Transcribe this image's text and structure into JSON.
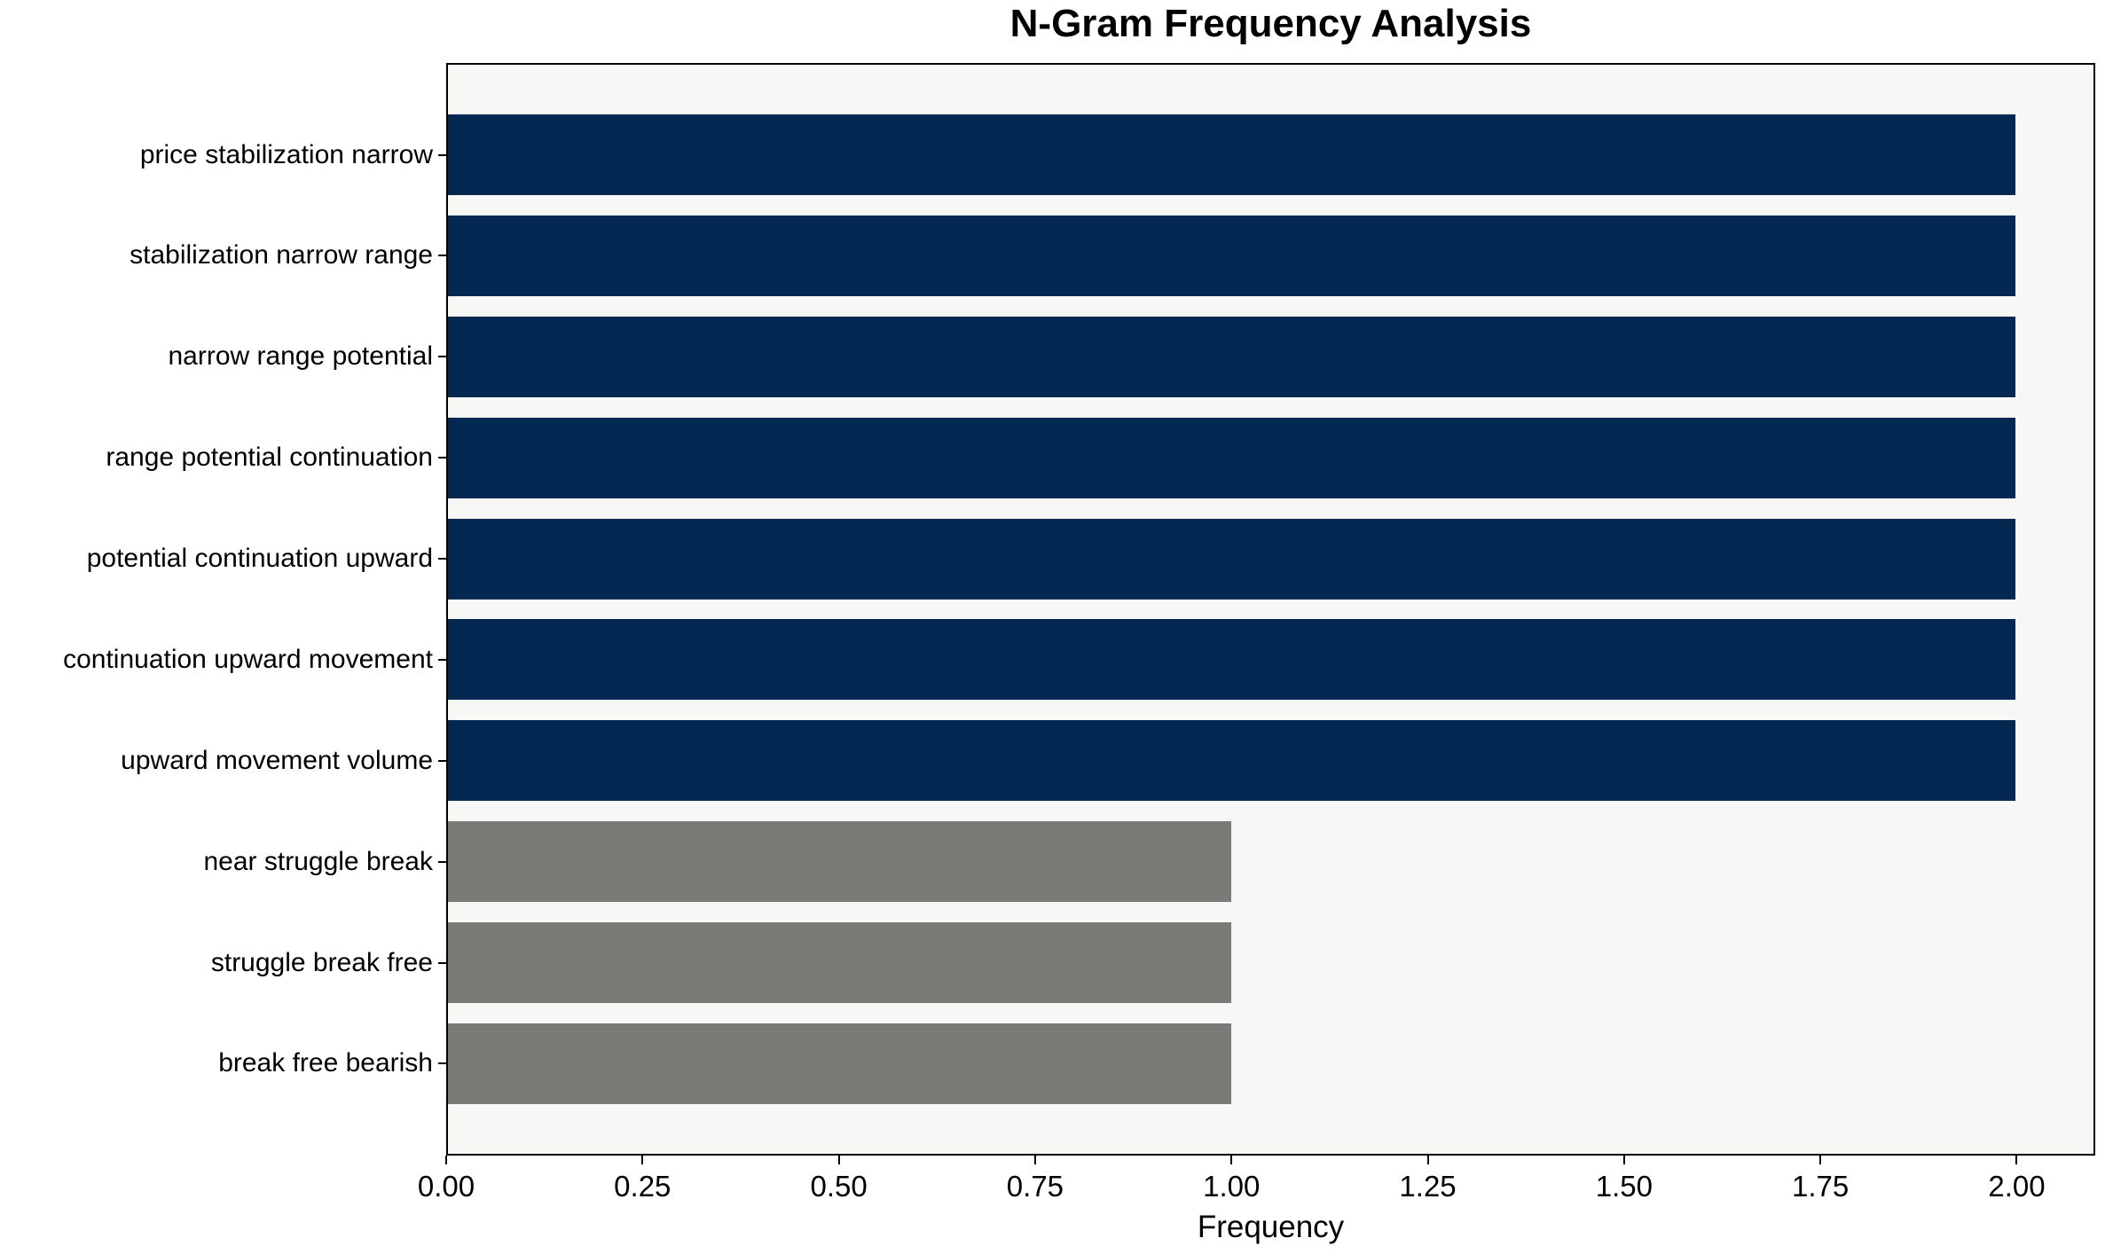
{
  "figure": {
    "background": "#ffffff",
    "plot_background": "#f7f7f6",
    "axis_color": "#000000"
  },
  "chart_data": {
    "type": "bar",
    "orientation": "horizontal",
    "title": "N-Gram Frequency Analysis",
    "xlabel": "Frequency",
    "ylabel": "",
    "grid": false,
    "legend": null,
    "xlim": [
      0,
      2.1
    ],
    "bar_height_fraction": 0.8,
    "categories": [
      "price stabilization narrow",
      "stabilization narrow range",
      "narrow range potential",
      "range potential continuation",
      "potential continuation upward",
      "continuation upward movement",
      "upward movement volume",
      "near struggle break",
      "struggle break free",
      "break free bearish"
    ],
    "values": [
      2,
      2,
      2,
      2,
      2,
      2,
      2,
      1,
      1,
      1
    ],
    "bar_colors": [
      "#032952",
      "#032952",
      "#032952",
      "#032952",
      "#032952",
      "#032952",
      "#032952",
      "#7a7a77",
      "#7a7a77",
      "#7a7a77"
    ],
    "colors": {
      "frequent": "#032952",
      "infrequent": "#7a7a77"
    },
    "xticks": [
      {
        "value": 0.0,
        "label": "0.00"
      },
      {
        "value": 0.25,
        "label": "0.25"
      },
      {
        "value": 0.5,
        "label": "0.50"
      },
      {
        "value": 0.75,
        "label": "0.75"
      },
      {
        "value": 1.0,
        "label": "1.00"
      },
      {
        "value": 1.25,
        "label": "1.25"
      },
      {
        "value": 1.5,
        "label": "1.50"
      },
      {
        "value": 1.75,
        "label": "1.75"
      },
      {
        "value": 2.0,
        "label": "2.00"
      }
    ]
  }
}
